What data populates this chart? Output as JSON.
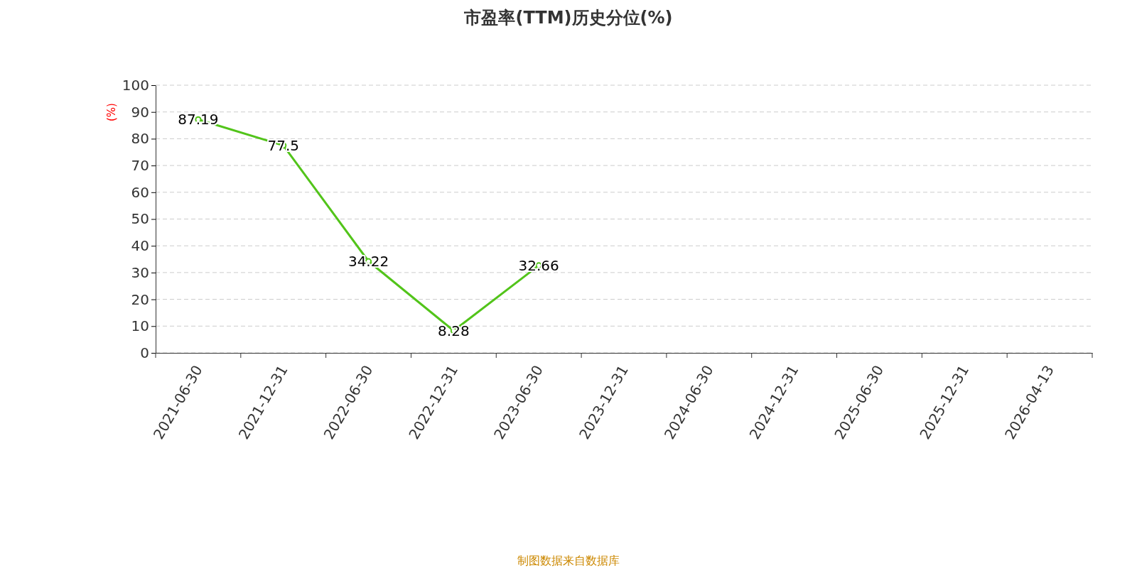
{
  "chart_data": {
    "type": "line",
    "title": "市盈率(TTM)历史分位(%)",
    "ylabel": "(%)",
    "categories": [
      "2021-06-30",
      "2021-12-31",
      "2022-06-30",
      "2022-12-31",
      "2023-06-30",
      "2023-12-31",
      "2024-06-30",
      "2024-12-31",
      "2025-06-30",
      "2025-12-31",
      "2026-04-13"
    ],
    "series": [
      {
        "color": "#52c41a",
        "values": [
          87.19,
          77.5,
          34.22,
          8.28,
          32.66,
          null,
          null,
          null,
          null,
          null,
          null
        ]
      }
    ],
    "ylim": [
      0,
      100
    ],
    "yticks": [
      0,
      10,
      20,
      30,
      40,
      50,
      60,
      70,
      80,
      90,
      100
    ],
    "grid": "y",
    "marker": "circle",
    "line_style": "solid",
    "data_labels": true,
    "annotations": [
      "制图数据来自数据库"
    ]
  }
}
